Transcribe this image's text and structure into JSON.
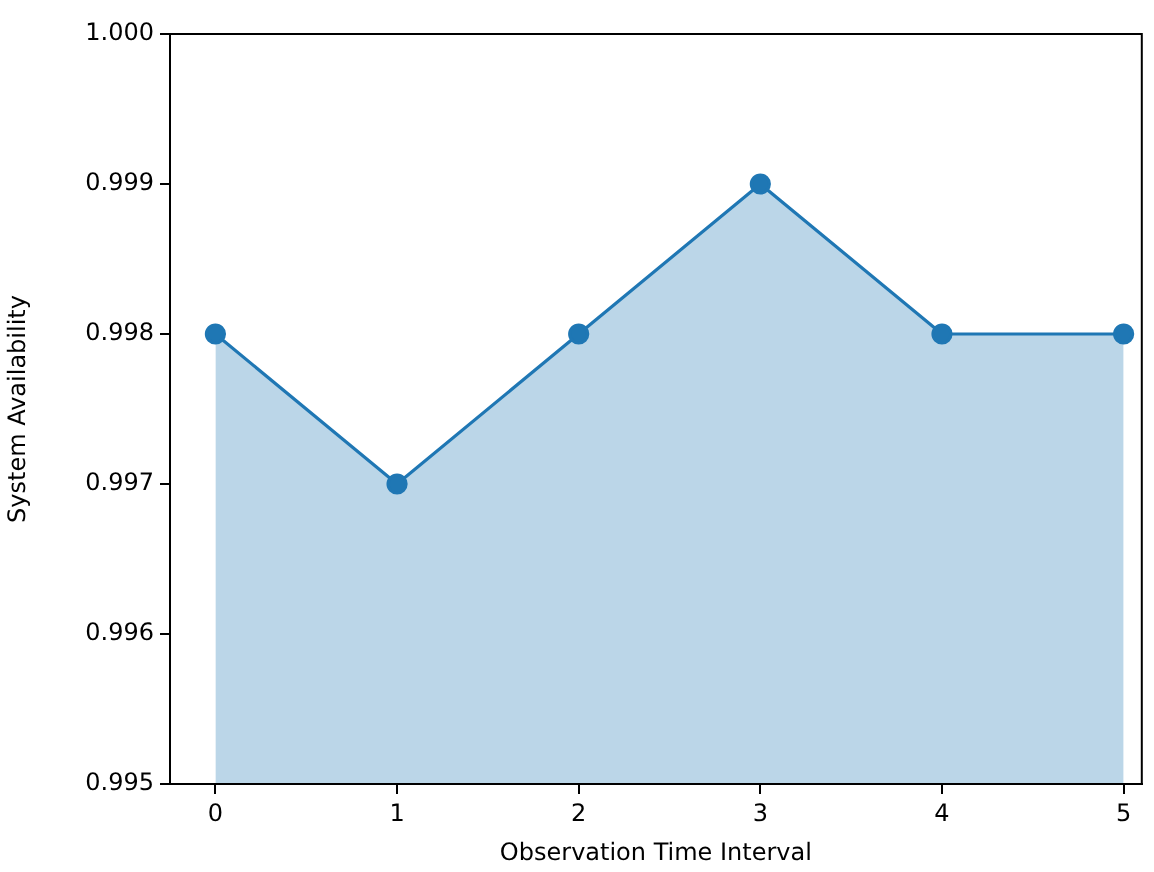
{
  "chart_data": {
    "type": "area",
    "xlabel": "Observation Time Interval",
    "ylabel": "System Availability",
    "x": [
      0,
      1,
      2,
      3,
      4,
      5
    ],
    "series": [
      {
        "color": "#1f77b4",
        "values": [
          0.998,
          0.997,
          0.998,
          0.999,
          0.998,
          0.998
        ]
      }
    ],
    "xlim": [
      -0.25,
      5.1
    ],
    "xticks": [
      0,
      1,
      2,
      3,
      4,
      5
    ],
    "ylim": [
      0.995,
      1.0
    ],
    "yticks": [
      0.995,
      0.996,
      0.997,
      0.998,
      0.999,
      {
        "value": 1.0,
        "label": "1.000"
      }
    ],
    "grid": false,
    "legend": false,
    "marker": "circle",
    "line_style": "solid"
  }
}
